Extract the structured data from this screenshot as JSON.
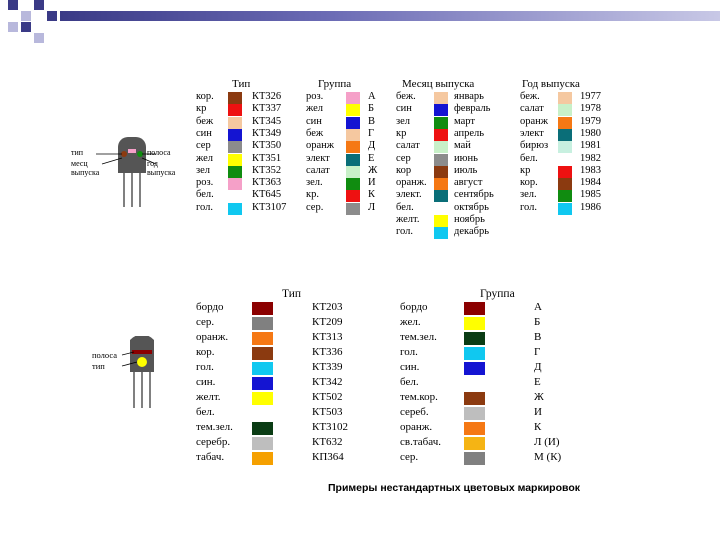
{
  "table1": {
    "headers": {
      "type": "Тип",
      "group": "Группа",
      "month": "Месяц выпуска",
      "year": "Год выпуска"
    },
    "type_rows": [
      {
        "color_name": "кор.",
        "color": "#8B3A10",
        "code": "КТ326"
      },
      {
        "color_name": "кр",
        "color": "#EE1111",
        "code": "КТ337"
      },
      {
        "color_name": "беж",
        "color": "#F5C8A0",
        "code": "КТ345"
      },
      {
        "color_name": "син",
        "color": "#1414D2",
        "code": "КТ349"
      },
      {
        "color_name": "сер",
        "color": "#8C8C8C",
        "code": "КТ350"
      },
      {
        "color_name": "жел",
        "color": "#FFFF00",
        "code": "КТ351"
      },
      {
        "color_name": "зел",
        "color": "#108C10",
        "code": "КТ352"
      },
      {
        "color_name": "роз.",
        "color": "#F5A0C8",
        "code": "КТ363"
      },
      {
        "color_name": "бел.",
        "color": "#FFFFFF",
        "code": "КТ645"
      },
      {
        "color_name": "гол.",
        "color": "#10C8F0",
        "code": "КТ3107"
      }
    ],
    "group_rows": [
      {
        "color_name": "роз.",
        "color": "#F5A0C8",
        "code": "А"
      },
      {
        "color_name": "жел",
        "color": "#FFFF00",
        "code": "Б"
      },
      {
        "color_name": "син",
        "color": "#1414D2",
        "code": "В"
      },
      {
        "color_name": "беж",
        "color": "#F5C8A0",
        "code": "Г"
      },
      {
        "color_name": "оранж",
        "color": "#F57814",
        "code": "Д"
      },
      {
        "color_name": "элект",
        "color": "#0A6E78",
        "code": "Е"
      },
      {
        "color_name": "салат",
        "color": "#C8F0C8",
        "code": "Ж"
      },
      {
        "color_name": "зел.",
        "color": "#108C10",
        "code": "И"
      },
      {
        "color_name": "кр.",
        "color": "#EE1111",
        "code": "К"
      },
      {
        "color_name": "сер.",
        "color": "#8C8C8C",
        "code": "Л"
      }
    ],
    "month_rows": [
      {
        "color_name": "беж.",
        "color": "#F5C8A0",
        "month": "январь"
      },
      {
        "color_name": "син",
        "color": "#1414D2",
        "month": "февраль"
      },
      {
        "color_name": "зел",
        "color": "#108C10",
        "month": "март"
      },
      {
        "color_name": "кр",
        "color": "#EE1111",
        "month": "апрель"
      },
      {
        "color_name": "салат",
        "color": "#C8F0C8",
        "month": "май"
      },
      {
        "color_name": "сер",
        "color": "#8C8C8C",
        "month": "июнь"
      },
      {
        "color_name": "кор",
        "color": "#8B3A10",
        "month": "июль"
      },
      {
        "color_name": "оранж.",
        "color": "#F57814",
        "month": "август"
      },
      {
        "color_name": "элект.",
        "color": "#0A6E78",
        "month": "сентябрь"
      },
      {
        "color_name": "бел.",
        "color": "#FFFFFF",
        "month": "октябрь"
      },
      {
        "color_name": "желт.",
        "color": "#FFFF00",
        "month": "ноябрь"
      },
      {
        "color_name": "гол.",
        "color": "#10C8F0",
        "month": "декабрь"
      }
    ],
    "year_rows": [
      {
        "color_name": "беж.",
        "color": "#F5C8A0",
        "year": "1977"
      },
      {
        "color_name": "салат",
        "color": "#C8F0C8",
        "year": "1978"
      },
      {
        "color_name": "оранж",
        "color": "#F57814",
        "year": "1979"
      },
      {
        "color_name": "элект",
        "color": "#0A6E78",
        "year": "1980"
      },
      {
        "color_name": "бирюз",
        "color": "#C8F0E0",
        "year": "1981"
      },
      {
        "color_name": "бел.",
        "color": "#FFFFFF",
        "year": "1982"
      },
      {
        "color_name": "кр",
        "color": "#EE1111",
        "year": "1983"
      },
      {
        "color_name": "кор.",
        "color": "#8B3A10",
        "year": "1984"
      },
      {
        "color_name": "зел.",
        "color": "#108C10",
        "year": "1985"
      },
      {
        "color_name": "гол.",
        "color": "#10C8F0",
        "year": "1986"
      }
    ]
  },
  "diagram1": {
    "label_type": "тип",
    "label_month": "месц",
    "label_release": "выпуска",
    "label_strip": "полоса",
    "label_year": "год",
    "label_year_release": "выпуска"
  },
  "table2": {
    "headers": {
      "type": "Тип",
      "group": "Группа"
    },
    "type_rows": [
      {
        "color_name": "бордо",
        "color": "#8B0000",
        "code": "КТ203"
      },
      {
        "color_name": "сер.",
        "color": "#808080",
        "code": "КТ209"
      },
      {
        "color_name": "оранж.",
        "color": "#F57814",
        "code": "КТ313"
      },
      {
        "color_name": "кор.",
        "color": "#8B3A10",
        "code": "КТ336"
      },
      {
        "color_name": "гол.",
        "color": "#10C8F0",
        "code": "КТ339"
      },
      {
        "color_name": "син.",
        "color": "#1414D2",
        "code": "КТ342"
      },
      {
        "color_name": "желт.",
        "color": "#FFFF00",
        "code": "КТ502"
      },
      {
        "color_name": "бел.",
        "color": "#FFFFFF",
        "code": "КТ503"
      },
      {
        "color_name": "тем.зел.",
        "color": "#0A3C14",
        "code": "КТ3102"
      },
      {
        "color_name": "серебр.",
        "color": "#BEBEBE",
        "code": "КТ632"
      },
      {
        "color_name": "табач.",
        "color": "#F5A000",
        "code": "КП364"
      }
    ],
    "group_rows": [
      {
        "color_name": "бордо",
        "color": "#8B0000",
        "code": "А"
      },
      {
        "color_name": "жел.",
        "color": "#FFFF00",
        "code": "Б"
      },
      {
        "color_name": "тем.зел.",
        "color": "#0A3C14",
        "code": "В"
      },
      {
        "color_name": "гол.",
        "color": "#10C8F0",
        "code": "Г"
      },
      {
        "color_name": "син.",
        "color": "#1414D2",
        "code": "Д"
      },
      {
        "color_name": "бел.",
        "color": "#FFFFFF",
        "code": "Е"
      },
      {
        "color_name": "тем.кор.",
        "color": "#8B3A10",
        "code": "Ж"
      },
      {
        "color_name": "сереб.",
        "color": "#BEBEBE",
        "code": "И"
      },
      {
        "color_name": "оранж.",
        "color": "#F57814",
        "code": "К"
      },
      {
        "color_name": "св.табач.",
        "color": "#F5B414",
        "code": "Л (И)"
      },
      {
        "color_name": "сер.",
        "color": "#808080",
        "code": "М (К)"
      }
    ]
  },
  "diagram2": {
    "label_strip": "полоса",
    "label_type": "тип"
  },
  "caption": "Примеры нестандартных цветовых маркировок",
  "colors": {
    "header_dark": "#3A3A86",
    "header_light": "#B8B8DC",
    "transistor_body": "#555555",
    "dot_yellow": "#FFFF00"
  }
}
